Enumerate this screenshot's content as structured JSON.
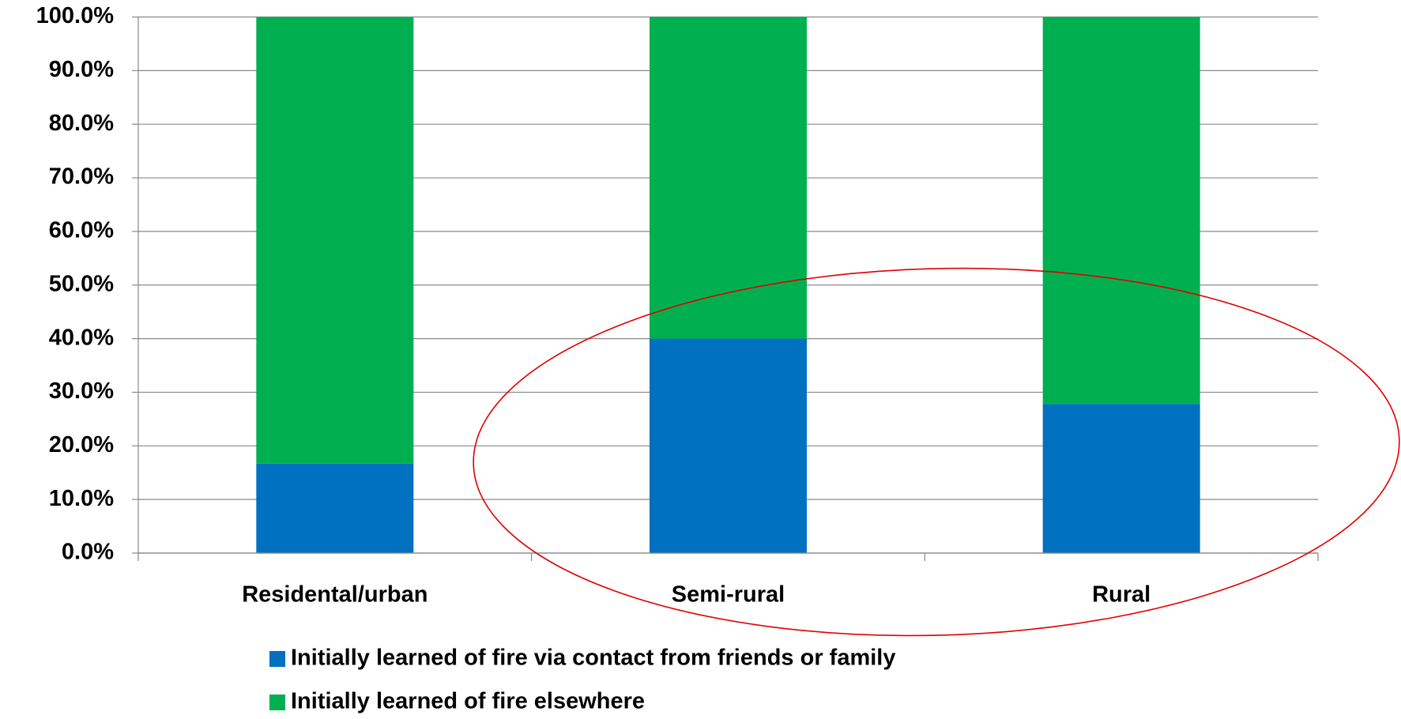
{
  "chart_data": {
    "type": "stacked_bar",
    "categories": [
      "Residental/urban",
      "Semi-rural",
      "Rural"
    ],
    "series": [
      {
        "name": "Initially learned of fire via contact from friends or family",
        "color": "#0070c0",
        "values": [
          16.7,
          40.0,
          27.8
        ]
      },
      {
        "name": "Initially learned of fire elsewhere",
        "color": "#00b050",
        "values": [
          83.3,
          60.0,
          72.2
        ]
      }
    ],
    "ylim": [
      0,
      100
    ],
    "yticks": [
      {
        "value": 0,
        "label": "0.0%"
      },
      {
        "value": 10,
        "label": "10.0%"
      },
      {
        "value": 20,
        "label": "20.0%"
      },
      {
        "value": 30,
        "label": "30.0%"
      },
      {
        "value": 40,
        "label": "40.0%"
      },
      {
        "value": 50,
        "label": "50.0%"
      },
      {
        "value": 60,
        "label": "60.0%"
      },
      {
        "value": 70,
        "label": "70.0%"
      },
      {
        "value": 80,
        "label": "80.0%"
      },
      {
        "value": 90,
        "label": "90.0%"
      },
      {
        "value": 100,
        "label": "100.0%"
      }
    ],
    "grid": true,
    "legend": "bottom"
  }
}
